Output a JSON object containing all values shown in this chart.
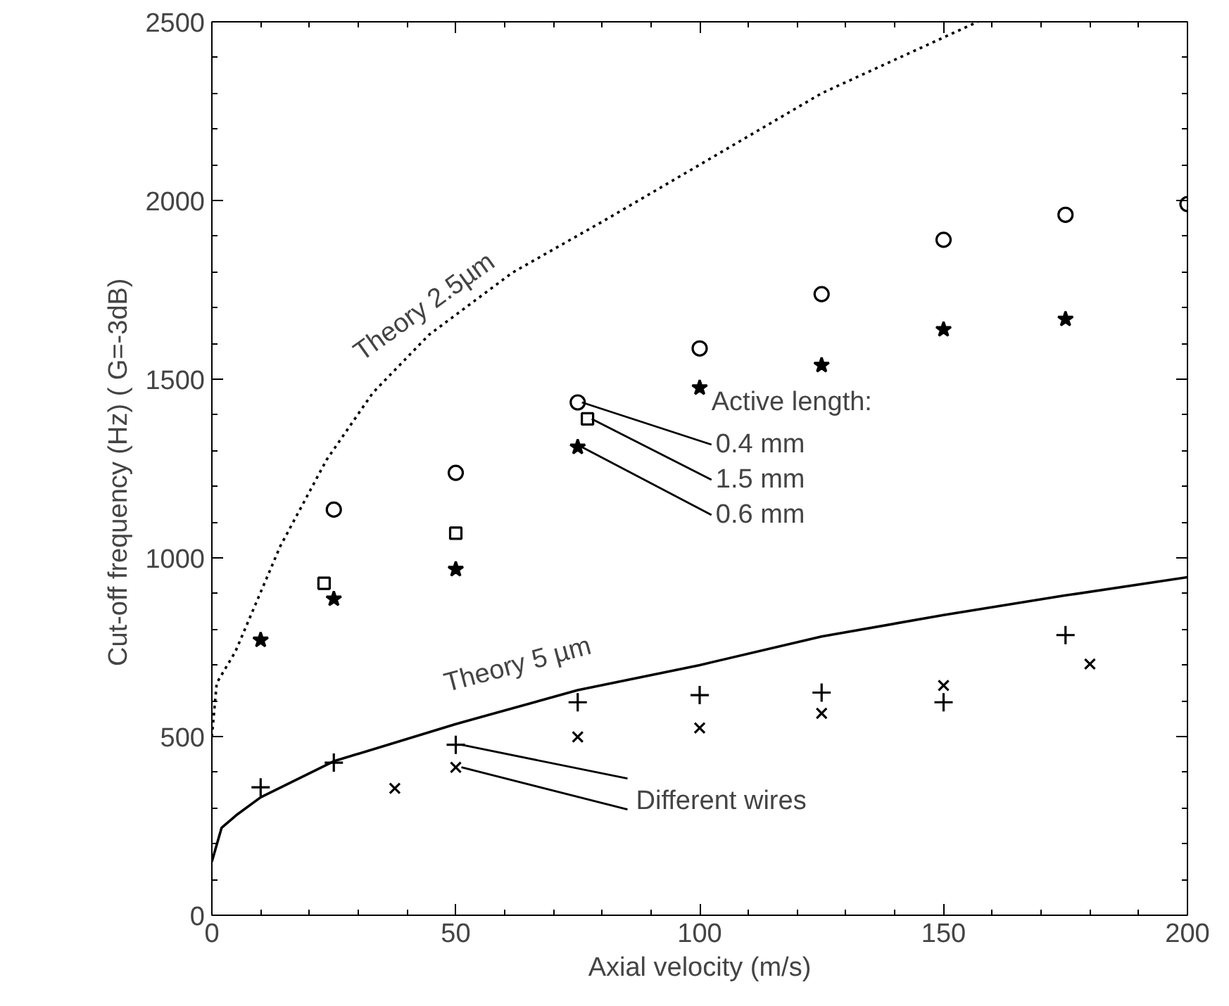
{
  "chart_data": {
    "type": "scatter",
    "xlabel": "Axial velocity (m/s)",
    "ylabel": "Cut-off frequency (Hz)  ( G=-3dB)",
    "xlim": [
      0,
      200
    ],
    "ylim": [
      0,
      2500
    ],
    "xticks": [
      0,
      50,
      100,
      150,
      200
    ],
    "yticks": [
      0,
      500,
      1000,
      1500,
      2000,
      2500
    ],
    "grid": false,
    "series": [
      {
        "marker": "circle",
        "color": "#000000",
        "x": [
          25,
          50,
          75,
          100,
          125,
          150,
          175,
          200
        ],
        "values": [
          1135,
          1238,
          1435,
          1586,
          1738,
          1890,
          1960,
          1990
        ]
      },
      {
        "marker": "square",
        "color": "#000000",
        "x": [
          23,
          50,
          77
        ],
        "values": [
          929,
          1069,
          1389
        ]
      },
      {
        "marker": "star",
        "color": "#000000",
        "x": [
          10,
          25,
          50,
          75,
          100,
          125,
          150,
          175
        ],
        "values": [
          770,
          885,
          968,
          1310,
          1476,
          1539,
          1639,
          1668
        ]
      },
      {
        "marker": "cross",
        "color": "#000000",
        "x": [
          10,
          25,
          50,
          75,
          100,
          125,
          150,
          175
        ],
        "values": [
          358,
          427,
          477,
          596,
          616,
          623,
          596,
          784
        ]
      },
      {
        "marker": "x",
        "color": "#000000",
        "x": [
          37.5,
          50,
          75,
          100,
          125,
          150,
          180
        ],
        "values": [
          355,
          414,
          499,
          524,
          565,
          643,
          703
        ]
      },
      {
        "type": "line",
        "line_style": "dotted",
        "color": "#000000",
        "x": [
          0,
          1,
          4.8,
          14,
          23.5,
          33,
          44.5,
          61.6,
          80.7,
          100,
          125,
          157
        ],
        "values": [
          500,
          650,
          737,
          1032,
          1274,
          1462,
          1624,
          1798,
          1946,
          2100,
          2300,
          2500
        ]
      },
      {
        "type": "line",
        "line_style": "solid",
        "color": "#000000",
        "x": [
          0,
          2,
          5,
          10,
          25,
          50,
          75,
          100,
          125,
          150,
          175,
          200
        ],
        "values": [
          150,
          245,
          280,
          330,
          431,
          535,
          630,
          700,
          780,
          840,
          895,
          946
        ]
      }
    ],
    "annotations": [
      {
        "text": "Theory 2.5µm",
        "x": 33,
        "y": 1462
      },
      {
        "text": "Theory 5 µm",
        "x": 50,
        "y": 535
      },
      "Active length:",
      {
        "text": "0.4 mm",
        "x": 75,
        "y": 1435
      },
      {
        "text": "1.5 mm",
        "x": 77,
        "y": 1389
      },
      {
        "text": "0.6 mm",
        "x": 75,
        "y": 1310
      },
      {
        "text": "Different wires",
        "x": 50,
        "y": 477
      }
    ]
  }
}
